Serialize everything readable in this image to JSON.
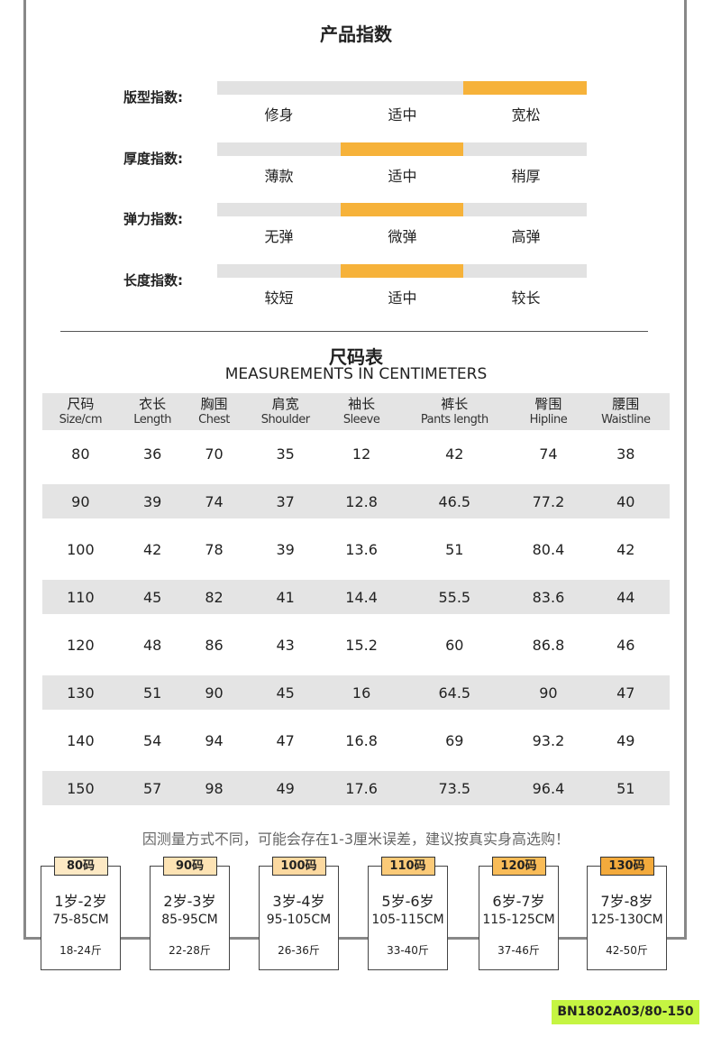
{
  "title": "产品指数",
  "indices": [
    {
      "label": "版型指数:",
      "options": [
        "修身",
        "适中",
        "宽松"
      ],
      "selected": 2
    },
    {
      "label": "厚度指数:",
      "options": [
        "薄款",
        "适中",
        "稍厚"
      ],
      "selected": 1
    },
    {
      "label": "弹力指数:",
      "options": [
        "无弹",
        "微弹",
        "高弹"
      ],
      "selected": 1
    },
    {
      "label": "长度指数:",
      "options": [
        "较短",
        "适中",
        "较长"
      ],
      "selected": 1
    }
  ],
  "size_title": "尺码表",
  "size_subtitle": "MEASUREMENTS IN CENTIMETERS",
  "columns": [
    [
      "尺码",
      "Size/cm"
    ],
    [
      "衣长",
      "Length"
    ],
    [
      "胸围",
      "Chest"
    ],
    [
      "肩宽",
      "Shoulder"
    ],
    [
      "袖长",
      "Sleeve"
    ],
    [
      "裤长",
      "Pants length"
    ],
    [
      "臀围",
      "Hipline"
    ],
    [
      "腰围",
      "Waistline"
    ]
  ],
  "rows": [
    [
      "80",
      "36",
      "70",
      "35",
      "12",
      "42",
      "74",
      "38"
    ],
    [
      "90",
      "39",
      "74",
      "37",
      "12.8",
      "46.5",
      "77.2",
      "40"
    ],
    [
      "100",
      "42",
      "78",
      "39",
      "13.6",
      "51",
      "80.4",
      "42"
    ],
    [
      "110",
      "45",
      "82",
      "41",
      "14.4",
      "55.5",
      "83.6",
      "44"
    ],
    [
      "120",
      "48",
      "86",
      "43",
      "15.2",
      "60",
      "86.8",
      "46"
    ],
    [
      "130",
      "51",
      "90",
      "45",
      "16",
      "64.5",
      "90",
      "47"
    ],
    [
      "140",
      "54",
      "94",
      "47",
      "16.8",
      "69",
      "93.2",
      "49"
    ],
    [
      "150",
      "57",
      "98",
      "49",
      "17.6",
      "73.5",
      "96.4",
      "51"
    ]
  ],
  "note": "因测量方式不同，可能会存在1-3厘米误差，建议按真实身高选购！",
  "sizes": [
    {
      "tag": "80码",
      "age": "1岁-2岁",
      "height": "75-85CM",
      "weight": "18-24斤",
      "color": "#fde9c4"
    },
    {
      "tag": "90码",
      "age": "2岁-3岁",
      "height": "85-95CM",
      "weight": "22-28斤",
      "color": "#fde3b4"
    },
    {
      "tag": "100码",
      "age": "3岁-4岁",
      "height": "95-105CM",
      "weight": "26-36斤",
      "color": "#fcd9a0"
    },
    {
      "tag": "110码",
      "age": "5岁-6岁",
      "height": "105-115CM",
      "weight": "33-40斤",
      "color": "#fbca78"
    },
    {
      "tag": "120码",
      "age": "6岁-7岁",
      "height": "115-125CM",
      "weight": "37-46斤",
      "color": "#f9bc58"
    },
    {
      "tag": "130码",
      "age": "7岁-8岁",
      "height": "125-130CM",
      "weight": "42-50斤",
      "color": "#f3aa3c"
    }
  ],
  "code": "BN1802A03/80-150",
  "colors": {
    "accent": "#f6b23a",
    "bar": "#e2e2e2",
    "code_bg": "#c5f542"
  }
}
